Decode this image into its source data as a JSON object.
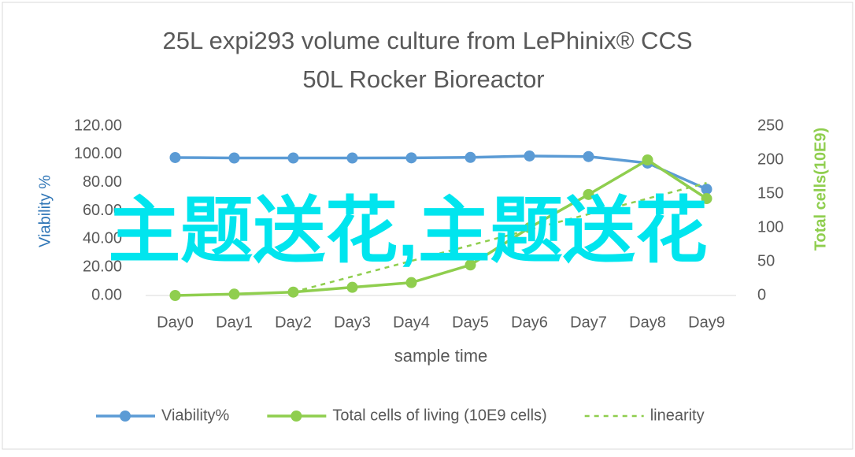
{
  "chart_data": {
    "type": "line",
    "title": [
      "25L  expi293 volume culture  from LePhinix® CCS",
      "50L Rocker Bioreactor"
    ],
    "x_label": "sample  time",
    "y_label": "Viability %",
    "y2_label": "Total cells(10E9)",
    "watermark": "主题送花,主题送花",
    "categories": [
      "Day0",
      "Day1",
      "Day2",
      "Day3",
      "Day4",
      "Day5",
      "Day6",
      "Day7",
      "Day8",
      "Day9"
    ],
    "series": [
      {
        "name": "Viability%",
        "color": "#5b9bd5",
        "axis": "y",
        "style": "marker",
        "values": [
          97.7,
          97.4,
          97.4,
          97.4,
          97.5,
          97.8,
          98.8,
          98.4,
          93.8,
          75.3
        ]
      },
      {
        "name": "Total cells of living (10E9 cells)",
        "color": "#8fce4e",
        "axis": "y2",
        "style": "marker",
        "values": [
          0,
          2,
          5,
          12,
          19,
          45,
          100,
          149,
          200,
          143
        ]
      },
      {
        "name": "linearity",
        "color": "#8fce4e",
        "axis": "y2",
        "style": "dashed",
        "values": [
          null,
          null,
          5,
          28,
          51,
          74,
          97,
          120,
          143,
          166
        ]
      }
    ],
    "ylim": [
      0,
      120
    ],
    "yticks": [
      {
        "value": 0,
        "label": "0.00"
      },
      {
        "value": 20,
        "label": "20.00"
      },
      {
        "value": 40,
        "label": "40.00"
      },
      {
        "value": 60,
        "label": "60.00"
      },
      {
        "value": 80,
        "label": "80.00"
      },
      {
        "value": 100,
        "label": "100.00"
      },
      {
        "value": 120,
        "label": "120.00"
      }
    ],
    "y2lim": [
      0,
      250
    ],
    "y2ticks": [
      0,
      50,
      100,
      150,
      200,
      250
    ],
    "legend": "bottom"
  }
}
